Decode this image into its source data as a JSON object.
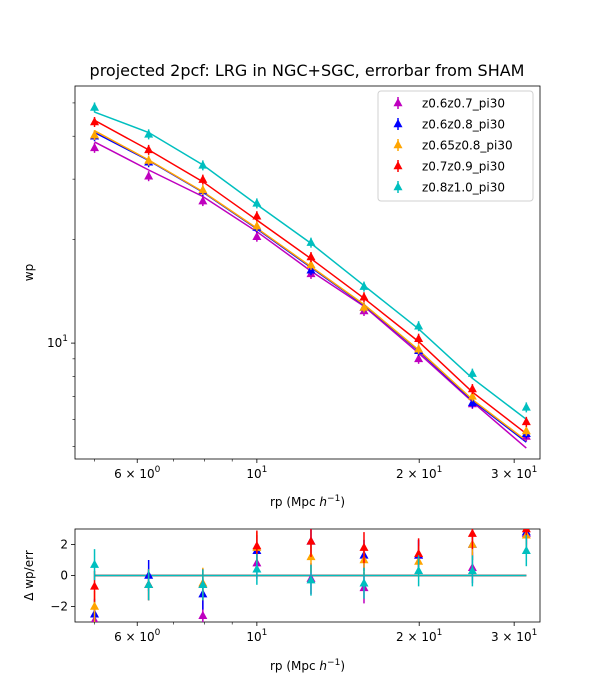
{
  "chart_data": [
    {
      "type": "line",
      "title": "projected 2pcf: LRG in NGC+SGC, errorbar from SHAM",
      "xlabel": "rp (Mpc $h^{-1}$)",
      "ylabel": "wp",
      "xscale": "log",
      "yscale": "log",
      "xlim": [
        4.6,
        33.5
      ],
      "ylim": [
        4.6,
        56
      ],
      "legend": "top-right",
      "grid": false,
      "xticks": [
        {
          "v": 6,
          "label": "6 × 10^0"
        },
        {
          "v": 10,
          "label": "10^1"
        },
        {
          "v": 20,
          "label": "2 × 10^1"
        },
        {
          "v": 30,
          "label": "3 × 10^1"
        }
      ],
      "yticks": [
        {
          "v": 10,
          "label": "10^1"
        }
      ],
      "x": [
        5.0,
        6.3,
        7.94,
        10.0,
        12.6,
        15.8,
        19.95,
        25.1,
        31.6
      ],
      "series": [
        {
          "name": "z0.6z0.7_pi30",
          "color": "#bf00bf",
          "marker": "^",
          "points": [
            37.0,
            30.6,
            25.9,
            20.4,
            15.9,
            12.4,
            9.0,
            6.65,
            5.35
          ],
          "model": [
            38.5,
            31.9,
            26.7,
            21.1,
            16.2,
            12.8,
            9.35,
            6.75,
            4.95
          ]
        },
        {
          "name": "z0.6z0.8_pi30",
          "color": "#0000ff",
          "marker": "^",
          "points": [
            40.0,
            33.6,
            27.7,
            21.7,
            16.3,
            12.7,
            9.5,
            6.7,
            5.45
          ],
          "model": [
            41.0,
            34.0,
            27.5,
            21.5,
            16.6,
            12.9,
            9.5,
            6.8,
            5.15
          ]
        },
        {
          "name": "z0.65z0.8_pi30",
          "color": "#ffa500",
          "marker": "^",
          "points": [
            40.3,
            34.0,
            27.9,
            21.9,
            16.9,
            12.7,
            9.6,
            7.0,
            5.55
          ],
          "model": [
            41.5,
            34.1,
            27.6,
            21.6,
            16.7,
            12.95,
            9.55,
            6.85,
            5.2
          ]
        },
        {
          "name": "z0.7z0.9_pi30",
          "color": "#ff0000",
          "marker": "^",
          "points": [
            44.0,
            36.5,
            29.9,
            23.4,
            17.8,
            13.6,
            10.3,
            7.35,
            5.9
          ],
          "model": [
            44.5,
            36.5,
            29.5,
            22.8,
            17.6,
            13.5,
            10.1,
            7.2,
            5.45
          ]
        },
        {
          "name": "z0.8z1.0_pi30",
          "color": "#00bfbf",
          "marker": "^",
          "points": [
            48.5,
            40.5,
            32.9,
            25.5,
            19.6,
            14.6,
            11.2,
            8.15,
            6.5
          ],
          "model": [
            47.0,
            41.0,
            33.0,
            25.3,
            19.5,
            14.7,
            11.0,
            7.9,
            6.0
          ]
        }
      ]
    },
    {
      "type": "scatter",
      "title": "",
      "xlabel": "rp (Mpc $h^{-1}$)",
      "ylabel": "Δ wp/err",
      "xscale": "log",
      "xlim": [
        4.6,
        33.5
      ],
      "ylim": [
        -3.0,
        3.0
      ],
      "grid": false,
      "xticks": [
        {
          "v": 6,
          "label": "6 × 10^0"
        },
        {
          "v": 10,
          "label": "10^1"
        },
        {
          "v": 20,
          "label": "2 × 10^1"
        },
        {
          "v": 30,
          "label": "3 × 10^1"
        }
      ],
      "yticks": [
        {
          "v": -2,
          "label": "−2"
        },
        {
          "v": 0,
          "label": "0"
        },
        {
          "v": 2,
          "label": "2"
        }
      ],
      "reference_line": 0,
      "x": [
        5.0,
        6.3,
        7.94,
        10.0,
        12.6,
        15.8,
        19.95,
        25.1,
        31.6
      ],
      "series": [
        {
          "name": "z0.6z0.7_pi30",
          "color": "#bf00bf",
          "values": [
            -2.9,
            -0.6,
            -2.6,
            0.8,
            -0.2,
            -0.8,
            1.3,
            0.5,
            2.7
          ],
          "err": [
            1.0,
            1.0,
            1.0,
            1.0,
            1.0,
            1.0,
            1.0,
            1.0,
            1.0
          ]
        },
        {
          "name": "z0.6z0.8_pi30",
          "color": "#0000ff",
          "values": [
            -2.5,
            0.0,
            -1.2,
            1.6,
            2.2,
            1.3,
            1.3,
            2.0,
            2.8
          ],
          "err": [
            1.0,
            1.0,
            1.0,
            1.0,
            1.0,
            1.0,
            1.0,
            1.0,
            1.0
          ]
        },
        {
          "name": "z0.65z0.8_pi30",
          "color": "#ffa500",
          "values": [
            -2.0,
            -0.6,
            -0.5,
            1.8,
            1.2,
            1.0,
            0.9,
            2.0,
            2.6
          ],
          "err": [
            1.0,
            1.0,
            1.0,
            1.0,
            1.0,
            1.0,
            1.0,
            1.0,
            1.0
          ]
        },
        {
          "name": "z0.7z0.9_pi30",
          "color": "#ff0000",
          "values": [
            -0.7,
            -0.6,
            -0.6,
            1.9,
            2.2,
            1.8,
            1.4,
            2.7,
            3.0
          ],
          "err": [
            1.0,
            1.0,
            1.0,
            1.0,
            1.0,
            1.0,
            1.0,
            1.0,
            1.0
          ]
        },
        {
          "name": "z0.8z1.0_pi30",
          "color": "#00bfbf",
          "values": [
            0.7,
            -0.6,
            -0.6,
            0.4,
            -0.3,
            -0.5,
            0.3,
            0.3,
            1.6
          ],
          "err": [
            1.0,
            1.0,
            1.0,
            1.0,
            1.0,
            1.0,
            1.0,
            1.0,
            1.0
          ]
        }
      ]
    }
  ]
}
